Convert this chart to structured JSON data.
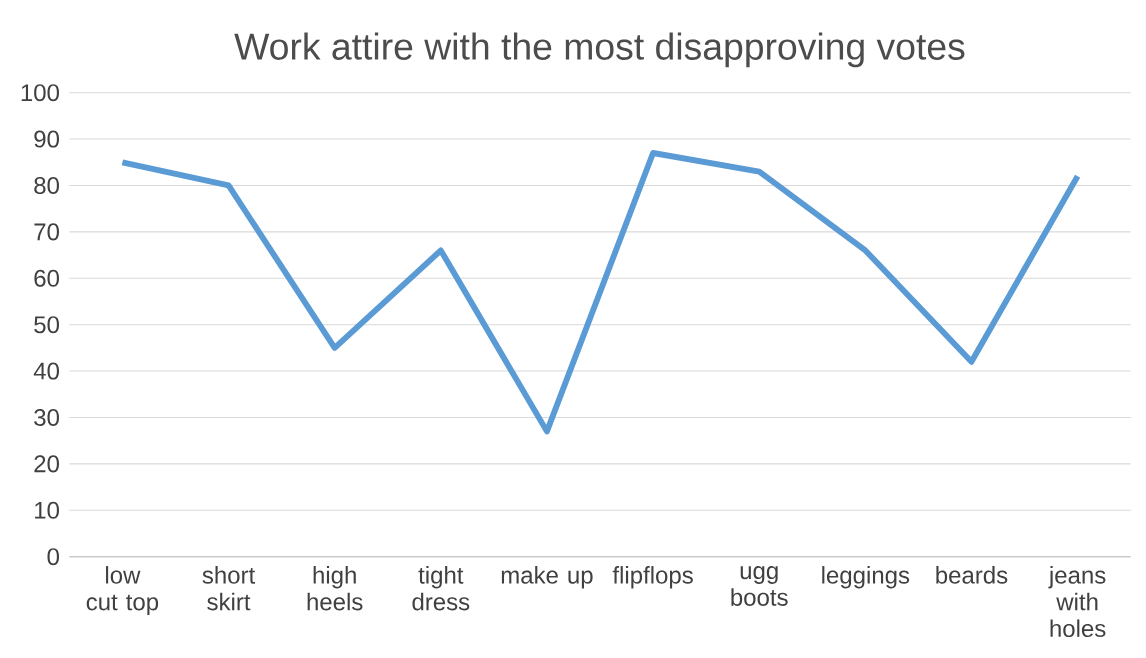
{
  "chart_data": {
    "type": "line",
    "title": "Work attire with the most disapproving votes",
    "categories": [
      "low cut top",
      "short skirt",
      "high heels",
      "tight dress",
      "make up",
      "flipflops",
      "ugg boots",
      "leggings",
      "beards",
      "jeans with holes"
    ],
    "series": [
      {
        "color": "#5b9bd5",
        "values": [
          85,
          80,
          45,
          66,
          27,
          87,
          83,
          66,
          42,
          82
        ]
      }
    ],
    "ylim": [
      0,
      100
    ],
    "yticks": [
      0,
      10,
      20,
      30,
      40,
      50,
      60,
      70,
      80,
      90,
      100
    ],
    "grid": "y",
    "legend": false,
    "marker": "none",
    "line_style": "solid"
  }
}
